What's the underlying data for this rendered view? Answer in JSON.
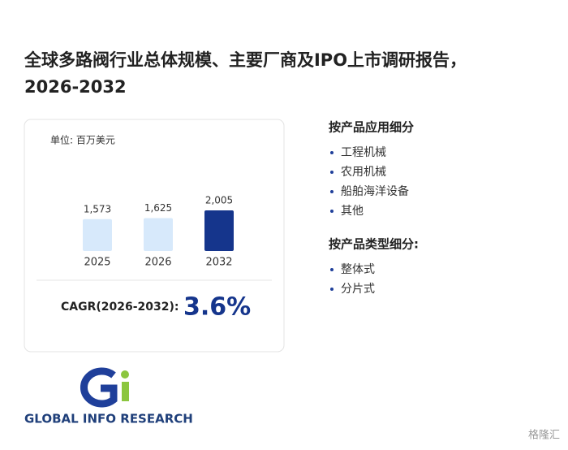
{
  "header": {
    "title_line1": "全球多路阀行业总体规模、主要厂商及IPO上市调研报告，",
    "title_line2": "2026-2032"
  },
  "chart_data": {
    "type": "bar",
    "unit_label": "单位: 百万美元",
    "categories": [
      "2025",
      "2026",
      "2032"
    ],
    "values": [
      1573,
      1625,
      2005
    ],
    "value_labels": [
      "1,573",
      "1,625",
      "2,005"
    ],
    "colors": [
      "#d7e9fb",
      "#d7e9fb",
      "#15358c"
    ]
  },
  "cagr": {
    "label": "CAGR(2026-2032):",
    "value": "3.6%"
  },
  "segments": [
    {
      "title": "按产品应用细分",
      "items": [
        "工程机械",
        "农用机械",
        "船舶海洋设备",
        "其他"
      ]
    },
    {
      "title": "按产品类型细分:",
      "items": [
        "整体式",
        "分片式"
      ]
    }
  ],
  "logo": {
    "text": "GLOBAL INFO RESEARCH"
  },
  "watermark": "格隆汇"
}
